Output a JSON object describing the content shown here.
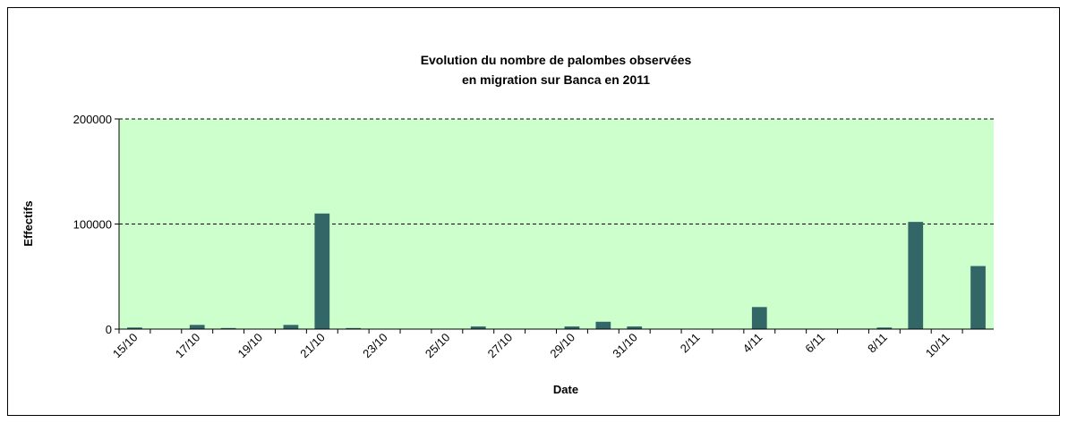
{
  "chart_data": {
    "type": "bar",
    "title": [
      "Evolution du nombre de palombes observées",
      "en migration sur Banca en 2011"
    ],
    "x_label": "Date",
    "y_label": "Effectifs",
    "categories": [
      "15/10",
      null,
      "17/10",
      null,
      "19/10",
      null,
      "21/10",
      null,
      "23/10",
      null,
      "25/10",
      null,
      "27/10",
      null,
      "29/10",
      null,
      "31/10",
      null,
      "2/11",
      null,
      "4/11",
      null,
      "6/11",
      null,
      "8/11",
      null,
      "10/11",
      null
    ],
    "values": [
      1500,
      0,
      4000,
      1000,
      0,
      4000,
      110000,
      1000,
      0,
      0,
      0,
      2500,
      0,
      0,
      2500,
      7000,
      2500,
      0,
      0,
      0,
      21000,
      0,
      0,
      0,
      1500,
      102000,
      0,
      60000
    ],
    "color": "#336666",
    "background": "#ccffcc",
    "ylim": [
      0,
      200000
    ],
    "yticks": [
      0,
      100000,
      200000
    ],
    "grid": true
  }
}
